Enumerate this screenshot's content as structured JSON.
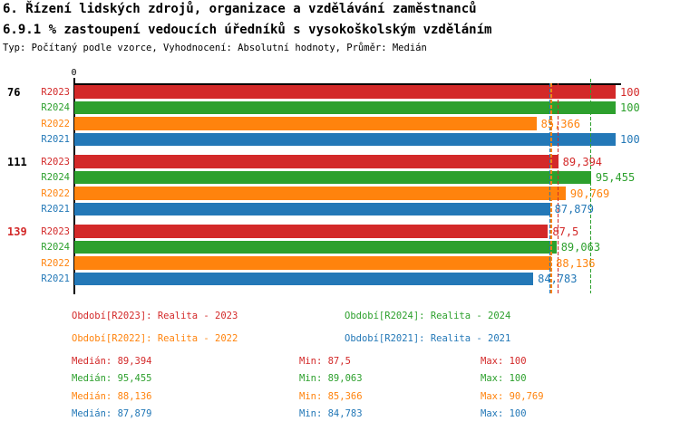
{
  "header": {
    "title": "6. Řízení lidských zdrojů, organizace a vzdělávání zaměstnanců",
    "subtitle": "6.9.1 % zastoupení vedoucích úředníků s vysokoškolským vzděláním",
    "meta": "Typ: Počítaný podle vzorce, Vyhodnocení: Absolutní hodnoty, Průměr: Medián"
  },
  "colors": {
    "R2023": "#D32929",
    "R2024": "#2DA02D",
    "R2022": "#FF830D",
    "R2021": "#2378B7",
    "axis": "#000000",
    "group_label_default": "#000000"
  },
  "chart_data": {
    "type": "bar",
    "orientation": "horizontal",
    "title": "6.9.1 % zastoupení vedoucích úředníků s vysokoškolským vzděláním",
    "value_axis": {
      "min": 0,
      "max": 100,
      "origin_label": "0"
    },
    "series": [
      {
        "id": "R2023",
        "name": "Realita - 2023"
      },
      {
        "id": "R2024",
        "name": "Realita - 2024"
      },
      {
        "id": "R2022",
        "name": "Realita - 2022"
      },
      {
        "id": "R2021",
        "name": "Realita - 2021"
      }
    ],
    "groups": [
      {
        "label": "76",
        "label_color": "#000000",
        "bars": [
          {
            "series": "R2023",
            "value": 100,
            "display": "100"
          },
          {
            "series": "R2024",
            "value": 100,
            "display": "100"
          },
          {
            "series": "R2022",
            "value": 85.366,
            "display": "85,366"
          },
          {
            "series": "R2021",
            "value": 100,
            "display": "100"
          }
        ]
      },
      {
        "label": "111",
        "label_color": "#000000",
        "bars": [
          {
            "series": "R2023",
            "value": 89.394,
            "display": "89,394"
          },
          {
            "series": "R2024",
            "value": 95.455,
            "display": "95,455"
          },
          {
            "series": "R2022",
            "value": 90.769,
            "display": "90,769"
          },
          {
            "series": "R2021",
            "value": 87.879,
            "display": "87,879"
          }
        ]
      },
      {
        "label": "139",
        "label_color": "#D32929",
        "bars": [
          {
            "series": "R2023",
            "value": 87.5,
            "display": "87,5"
          },
          {
            "series": "R2024",
            "value": 89.063,
            "display": "89,063"
          },
          {
            "series": "R2022",
            "value": 88.136,
            "display": "88,136"
          },
          {
            "series": "R2021",
            "value": 84.783,
            "display": "84,783"
          }
        ]
      }
    ],
    "medians": [
      {
        "series": "R2023",
        "value": 89.394
      },
      {
        "series": "R2024",
        "value": 95.455
      },
      {
        "series": "R2022",
        "value": 88.136
      },
      {
        "series": "R2021",
        "value": 87.879
      }
    ]
  },
  "legend": [
    {
      "series": "R2023",
      "label": "Období[R2023]: Realita - 2023"
    },
    {
      "series": "R2024",
      "label": "Období[R2024]: Realita - 2024"
    },
    {
      "series": "R2022",
      "label": "Období[R2022]: Realita - 2022"
    },
    {
      "series": "R2021",
      "label": "Období[R2021]: Realita - 2021"
    }
  ],
  "stats_labels": {
    "median": "Medián:",
    "min": "Min:",
    "max": "Max:"
  },
  "stats": [
    {
      "series": "R2023",
      "median": "89,394",
      "min": "87,5",
      "max": "100"
    },
    {
      "series": "R2024",
      "median": "95,455",
      "min": "89,063",
      "max": "100"
    },
    {
      "series": "R2022",
      "median": "88,136",
      "min": "85,366",
      "max": "90,769"
    },
    {
      "series": "R2021",
      "median": "87,879",
      "min": "84,783",
      "max": "100"
    }
  ]
}
